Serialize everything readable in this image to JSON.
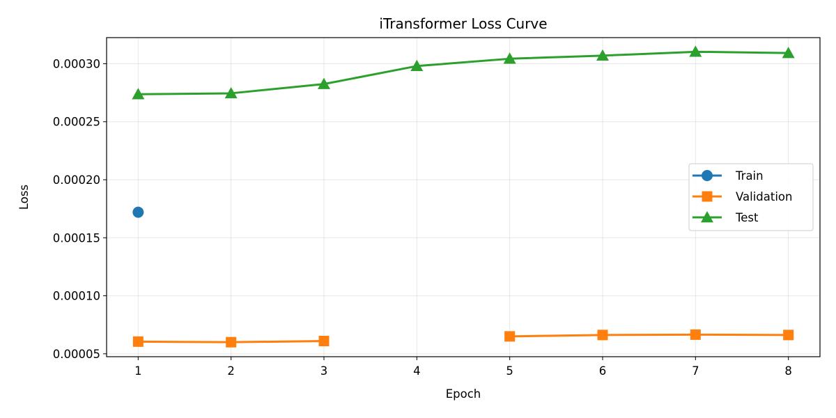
{
  "chart_data": {
    "type": "line",
    "title": "iTransformer Loss Curve",
    "xlabel": "Epoch",
    "ylabel": "Loss",
    "x": [
      1,
      2,
      3,
      4,
      5,
      6,
      7,
      8
    ],
    "xticks": [
      "1",
      "2",
      "3",
      "4",
      "5",
      "6",
      "7",
      "8"
    ],
    "xlim": [
      0.66,
      8.34
    ],
    "yticks": [
      "0.00005",
      "0.00010",
      "0.00015",
      "0.00020",
      "0.00025",
      "0.00030"
    ],
    "ytick_values": [
      5e-05,
      0.0001,
      0.00015,
      0.0002,
      0.00025,
      0.0003
    ],
    "ylim": [
      4.75e-05,
      0.0003225
    ],
    "grid": true,
    "legend_position": "center-right",
    "series": [
      {
        "name": "Train",
        "color": "#1f77b4",
        "marker": "circle",
        "values": [
          0.000172,
          null,
          null,
          null,
          null,
          null,
          null,
          null
        ]
      },
      {
        "name": "Validation",
        "color": "#ff7f0e",
        "marker": "square",
        "values": [
          6.05e-05,
          6e-05,
          6.1e-05,
          null,
          6.5e-05,
          6.62e-05,
          6.65e-05,
          6.62e-05
        ]
      },
      {
        "name": "Test",
        "color": "#2ca02c",
        "marker": "triangle",
        "values": [
          0.0002737,
          0.0002745,
          0.0002825,
          0.000298,
          0.0003043,
          0.000307,
          0.0003103,
          0.0003092
        ]
      }
    ]
  }
}
